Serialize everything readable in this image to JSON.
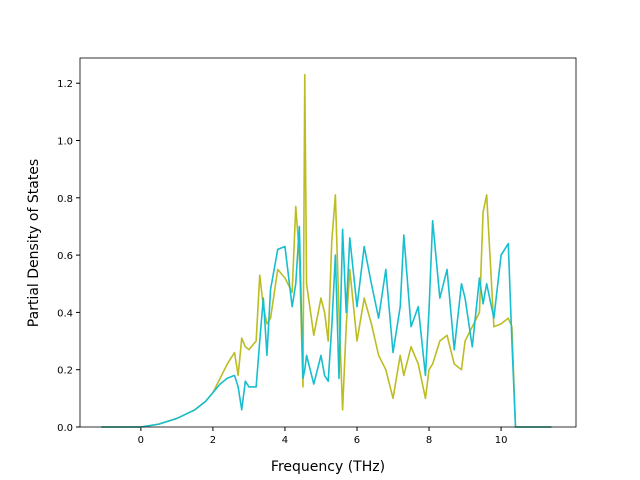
{
  "chart_data": {
    "type": "line",
    "x_label": "Frequency (THz)",
    "y_label": "Partial Density of States",
    "x": [
      -1.1,
      0,
      0.5,
      1,
      1.5,
      1.8,
      2,
      2.2,
      2.4,
      2.6,
      2.7,
      2.8,
      2.9,
      3.0,
      3.2,
      3.3,
      3.4,
      3.5,
      3.6,
      3.8,
      4.0,
      4.2,
      4.3,
      4.4,
      4.5,
      4.55,
      4.6,
      4.8,
      5.0,
      5.1,
      5.2,
      5.3,
      5.4,
      5.5,
      5.6,
      5.7,
      5.8,
      6.0,
      6.2,
      6.4,
      6.6,
      6.8,
      7.0,
      7.2,
      7.3,
      7.5,
      7.7,
      7.9,
      8.0,
      8.1,
      8.3,
      8.5,
      8.7,
      8.9,
      9.0,
      9.2,
      9.4,
      9.5,
      9.6,
      9.8,
      10.0,
      10.2,
      10.3,
      10.4,
      11.4
    ],
    "series": [
      {
        "color": "#bcbd22",
        "values": [
          0,
          0,
          0.01,
          0.03,
          0.06,
          0.09,
          0.12,
          0.17,
          0.22,
          0.26,
          0.18,
          0.31,
          0.28,
          0.27,
          0.3,
          0.53,
          0.42,
          0.36,
          0.38,
          0.55,
          0.52,
          0.47,
          0.77,
          0.6,
          0.14,
          1.23,
          0.5,
          0.32,
          0.45,
          0.4,
          0.3,
          0.65,
          0.81,
          0.4,
          0.06,
          0.35,
          0.55,
          0.3,
          0.45,
          0.36,
          0.25,
          0.2,
          0.1,
          0.25,
          0.18,
          0.28,
          0.22,
          0.1,
          0.2,
          0.22,
          0.3,
          0.32,
          0.22,
          0.2,
          0.3,
          0.35,
          0.4,
          0.75,
          0.81,
          0.35,
          0.36,
          0.38,
          0.35,
          0,
          0
        ]
      },
      {
        "color": "#17becf",
        "values": [
          0,
          0,
          0.01,
          0.03,
          0.06,
          0.09,
          0.12,
          0.15,
          0.17,
          0.18,
          0.14,
          0.06,
          0.16,
          0.14,
          0.14,
          0.3,
          0.45,
          0.25,
          0.48,
          0.62,
          0.63,
          0.42,
          0.5,
          0.7,
          0.17,
          0.2,
          0.25,
          0.15,
          0.25,
          0.18,
          0.16,
          0.35,
          0.6,
          0.17,
          0.69,
          0.4,
          0.66,
          0.42,
          0.63,
          0.5,
          0.38,
          0.55,
          0.26,
          0.42,
          0.67,
          0.35,
          0.42,
          0.18,
          0.41,
          0.72,
          0.45,
          0.55,
          0.27,
          0.5,
          0.45,
          0.28,
          0.52,
          0.43,
          0.5,
          0.38,
          0.6,
          0.64,
          0.3,
          0,
          0
        ]
      }
    ],
    "xlim": [
      -1.69,
      12.08
    ],
    "xticks": [
      0,
      2,
      4,
      6,
      8,
      10
    ],
    "ylim": [
      0,
      1.288
    ],
    "yticks": [
      {
        "value": 0,
        "label": "0.0"
      },
      0.2,
      0.4,
      0.6,
      0.8,
      {
        "value": 1,
        "label": "1.0"
      },
      1.2
    ]
  }
}
